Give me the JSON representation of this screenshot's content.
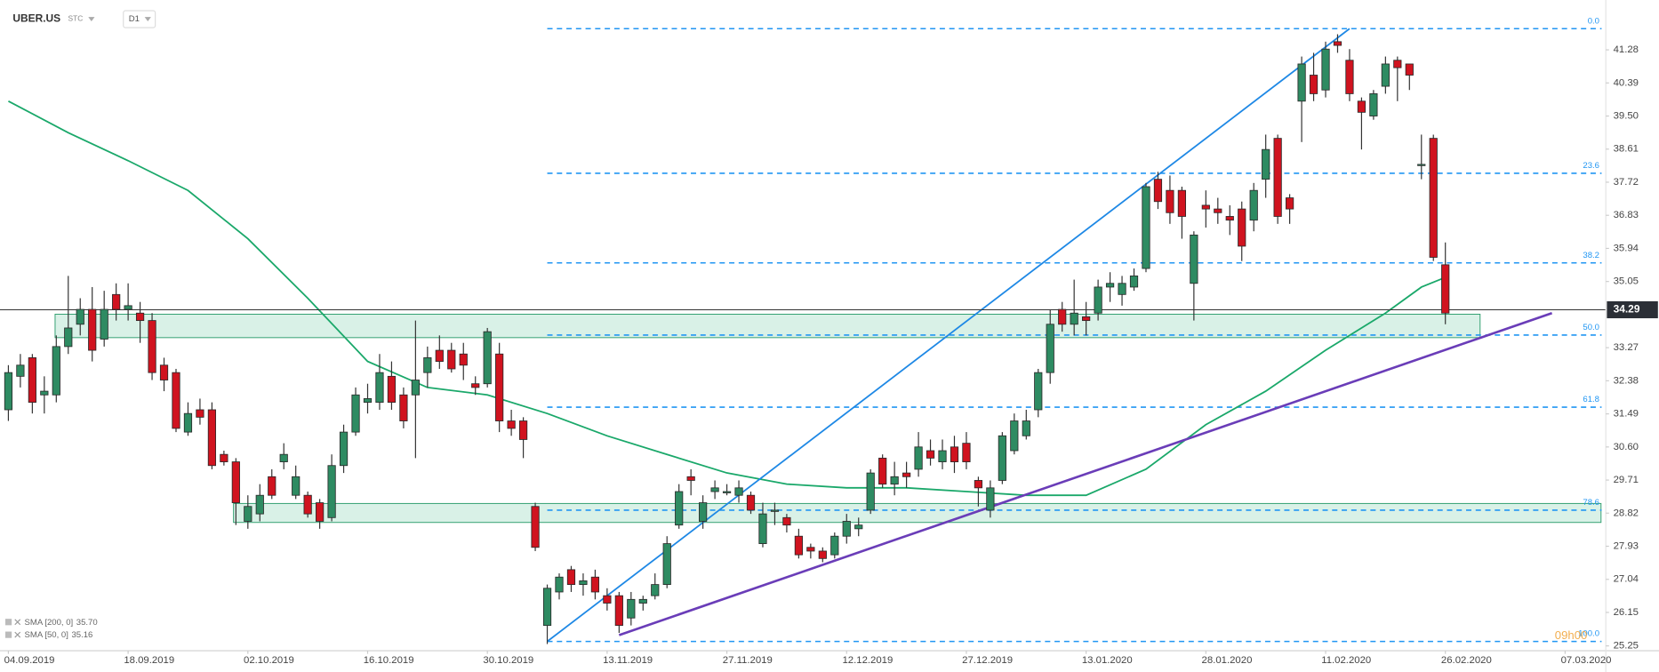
{
  "chart_data": {
    "type": "candlestick",
    "symbol": "UBER.US",
    "mode": "STC",
    "interval": "D1",
    "xlim": [
      -0.7,
      133.4
    ],
    "ylim": [
      25.12,
      42.62
    ],
    "yticks": [
      41.28,
      40.39,
      {
        "value": 39.5,
        "label": "39.50"
      },
      38.61,
      37.72,
      36.83,
      35.94,
      35.05,
      33.27,
      32.38,
      31.49,
      {
        "value": 30.6,
        "label": "30.60"
      },
      29.71,
      28.82,
      27.93,
      27.04,
      26.15,
      25.25
    ],
    "xticks": [
      {
        "value": 0,
        "label": "04.09.2019"
      },
      {
        "value": 10,
        "label": "18.09.2019"
      },
      {
        "value": 20,
        "label": "02.10.2019"
      },
      {
        "value": 30,
        "label": "16.10.2019"
      },
      {
        "value": 40,
        "label": "30.10.2019"
      },
      {
        "value": 50,
        "label": "13.11.2019"
      },
      {
        "value": 60,
        "label": "27.11.2019"
      },
      {
        "value": 70,
        "label": "12.12.2019"
      },
      {
        "value": 80,
        "label": "27.12.2019"
      },
      {
        "value": 90,
        "label": "13.01.2020"
      },
      {
        "value": 100,
        "label": "28.01.2020"
      },
      {
        "value": 110,
        "label": "11.02.2020"
      },
      {
        "value": 120,
        "label": "26.02.2020"
      },
      {
        "value": 130,
        "label": "07.03.2020"
      }
    ],
    "up_color": "#2e8b62",
    "down_color": "#d0131f",
    "ohlc": [
      [
        31.6,
        32.8,
        31.3,
        32.6
      ],
      [
        32.5,
        33.1,
        32.2,
        32.8
      ],
      [
        33.0,
        33.1,
        31.5,
        31.8
      ],
      [
        32.0,
        32.5,
        31.5,
        32.1
      ],
      [
        32.0,
        33.6,
        31.8,
        33.3
      ],
      [
        33.3,
        35.2,
        33.1,
        33.8
      ],
      [
        33.9,
        34.6,
        33.6,
        34.3
      ],
      [
        34.3,
        34.9,
        32.9,
        33.2
      ],
      [
        33.5,
        34.8,
        33.3,
        34.3
      ],
      [
        34.7,
        35.0,
        34.0,
        34.3
      ],
      [
        34.3,
        35.0,
        34.0,
        34.4
      ],
      [
        34.2,
        34.5,
        33.4,
        34.0
      ],
      [
        34.0,
        34.2,
        32.4,
        32.6
      ],
      [
        32.8,
        33.0,
        32.1,
        32.4
      ],
      [
        32.6,
        32.7,
        31.0,
        31.1
      ],
      [
        31.0,
        31.8,
        30.9,
        31.5
      ],
      [
        31.6,
        31.9,
        31.2,
        31.4
      ],
      [
        31.6,
        31.8,
        30.0,
        30.1
      ],
      [
        30.4,
        30.5,
        30.1,
        30.2
      ],
      [
        30.2,
        30.3,
        28.5,
        29.1
      ],
      [
        28.6,
        29.3,
        28.4,
        29.0
      ],
      [
        28.8,
        29.6,
        28.6,
        29.3
      ],
      [
        29.8,
        30.0,
        29.2,
        29.3
      ],
      [
        30.2,
        30.7,
        30.0,
        30.4
      ],
      [
        29.3,
        30.1,
        29.2,
        29.8
      ],
      [
        29.3,
        29.4,
        28.7,
        28.8
      ],
      [
        29.1,
        29.2,
        28.4,
        28.6
      ],
      [
        28.7,
        30.4,
        28.6,
        30.1
      ],
      [
        30.1,
        31.2,
        29.9,
        31.0
      ],
      [
        31.0,
        32.2,
        30.9,
        32.0
      ],
      [
        31.8,
        32.3,
        31.5,
        31.9
      ],
      [
        31.8,
        33.1,
        31.6,
        32.6
      ],
      [
        32.5,
        32.9,
        31.6,
        31.8
      ],
      [
        32.0,
        32.2,
        31.1,
        31.3
      ],
      [
        32.0,
        34.0,
        30.3,
        32.4
      ],
      [
        32.6,
        33.3,
        32.2,
        33.0
      ],
      [
        33.2,
        33.6,
        32.7,
        32.9
      ],
      [
        33.2,
        33.4,
        32.6,
        32.7
      ],
      [
        33.1,
        33.4,
        32.4,
        32.8
      ],
      [
        32.3,
        32.5,
        32.0,
        32.2
      ],
      [
        32.3,
        33.8,
        32.2,
        33.7
      ],
      [
        33.1,
        33.4,
        31.0,
        31.3
      ],
      [
        31.3,
        31.6,
        30.9,
        31.1
      ],
      [
        31.3,
        31.4,
        30.3,
        30.8
      ],
      [
        29.0,
        29.1,
        27.8,
        27.9
      ],
      [
        25.8,
        26.9,
        25.3,
        26.8
      ],
      [
        26.7,
        27.2,
        26.5,
        27.1
      ],
      [
        27.3,
        27.4,
        26.7,
        26.9
      ],
      [
        26.9,
        27.2,
        26.6,
        27.0
      ],
      [
        27.1,
        27.3,
        26.5,
        26.7
      ],
      [
        26.6,
        26.8,
        26.2,
        26.4
      ],
      [
        26.6,
        26.7,
        25.6,
        25.8
      ],
      [
        26.0,
        26.7,
        25.8,
        26.5
      ],
      [
        26.4,
        26.6,
        26.2,
        26.5
      ],
      [
        26.6,
        27.2,
        26.5,
        26.9
      ],
      [
        26.9,
        28.2,
        26.8,
        28.0
      ],
      [
        28.5,
        29.6,
        28.4,
        29.4
      ],
      [
        29.8,
        30.0,
        29.3,
        29.7
      ],
      [
        28.6,
        29.3,
        28.4,
        29.1
      ],
      [
        29.4,
        29.7,
        29.2,
        29.5
      ],
      [
        29.4,
        29.6,
        29.3,
        29.4
      ],
      [
        29.3,
        29.7,
        29.1,
        29.5
      ],
      [
        29.3,
        29.4,
        28.8,
        28.9
      ],
      [
        28.0,
        29.1,
        27.9,
        28.8
      ],
      [
        28.9,
        29.1,
        28.5,
        28.9
      ],
      [
        28.7,
        28.8,
        28.3,
        28.5
      ],
      [
        28.2,
        28.4,
        27.6,
        27.7
      ],
      [
        27.9,
        28.0,
        27.6,
        27.8
      ],
      [
        27.8,
        27.9,
        27.5,
        27.6
      ],
      [
        27.7,
        28.3,
        27.6,
        28.2
      ],
      [
        28.2,
        28.8,
        28.0,
        28.6
      ],
      [
        28.4,
        28.7,
        28.2,
        28.5
      ],
      [
        28.9,
        30.0,
        28.8,
        29.9
      ],
      [
        30.3,
        30.4,
        29.5,
        29.6
      ],
      [
        29.6,
        30.2,
        29.3,
        29.8
      ],
      [
        29.9,
        30.2,
        29.5,
        29.8
      ],
      [
        30.0,
        31.0,
        29.8,
        30.6
      ],
      [
        30.5,
        30.8,
        30.1,
        30.3
      ],
      [
        30.2,
        30.8,
        30.0,
        30.5
      ],
      [
        30.6,
        30.9,
        29.9,
        30.2
      ],
      [
        30.7,
        31.0,
        30.0,
        30.2
      ],
      [
        29.7,
        29.8,
        29.0,
        29.5
      ],
      [
        28.9,
        29.7,
        28.7,
        29.5
      ],
      [
        29.7,
        31.0,
        29.6,
        30.9
      ],
      [
        30.5,
        31.5,
        30.4,
        31.3
      ],
      [
        30.9,
        31.6,
        30.8,
        31.3
      ],
      [
        31.6,
        32.7,
        31.4,
        32.6
      ],
      [
        32.6,
        34.3,
        32.3,
        33.9
      ],
      [
        34.3,
        34.5,
        33.7,
        33.9
      ],
      [
        33.9,
        35.1,
        33.6,
        34.2
      ],
      [
        34.1,
        34.5,
        33.6,
        34.0
      ],
      [
        34.2,
        35.1,
        34.0,
        34.9
      ],
      [
        34.9,
        35.3,
        34.5,
        35.0
      ],
      [
        34.7,
        35.2,
        34.4,
        35.0
      ],
      [
        34.9,
        35.4,
        34.8,
        35.2
      ],
      [
        35.4,
        37.7,
        35.3,
        37.6
      ],
      [
        37.8,
        38.0,
        37.0,
        37.2
      ],
      [
        37.5,
        37.9,
        36.6,
        36.9
      ],
      [
        37.5,
        37.6,
        36.2,
        36.8
      ],
      [
        35.0,
        36.4,
        34.0,
        36.3
      ],
      [
        37.1,
        37.5,
        36.5,
        37.0
      ],
      [
        37.0,
        37.3,
        36.6,
        36.9
      ],
      [
        36.8,
        37.1,
        36.3,
        36.7
      ],
      [
        37.0,
        37.2,
        35.6,
        36.0
      ],
      [
        36.7,
        37.7,
        36.4,
        37.5
      ],
      [
        37.8,
        39.0,
        37.3,
        38.6
      ],
      [
        38.9,
        39.0,
        36.6,
        36.8
      ],
      [
        37.3,
        37.4,
        36.6,
        37.0
      ],
      [
        39.9,
        41.1,
        38.8,
        40.9
      ],
      [
        40.6,
        41.2,
        39.9,
        40.1
      ],
      [
        40.2,
        41.5,
        40.0,
        41.3
      ],
      [
        41.5,
        41.7,
        41.2,
        41.4
      ],
      [
        41.0,
        41.3,
        39.9,
        40.1
      ],
      [
        39.9,
        40.0,
        38.6,
        39.6
      ],
      [
        39.5,
        40.2,
        39.4,
        40.1
      ],
      [
        40.3,
        41.1,
        40.1,
        40.9
      ],
      [
        41.0,
        41.1,
        39.9,
        40.8
      ],
      [
        40.9,
        40.9,
        40.2,
        40.6
      ],
      [
        38.2,
        39.0,
        37.8,
        38.2
      ],
      [
        38.9,
        39.0,
        35.6,
        35.7
      ],
      [
        35.5,
        36.1,
        33.9,
        34.2
      ]
    ],
    "last_price": 34.29,
    "indicators": [
      {
        "name": "SMA [200, 0]",
        "last": 35.7,
        "last_label": "35.70"
      },
      {
        "name": "SMA [50, 0]",
        "last": 35.16,
        "last_label": "35.16",
        "color": "#1aa86a",
        "x": [
          0,
          5,
          10,
          15,
          20,
          25,
          30,
          35,
          40,
          45,
          50,
          55,
          60,
          65,
          70,
          75,
          80,
          85,
          90,
          95,
          100,
          105,
          110,
          115,
          118,
          120
        ],
        "values": [
          39.9,
          39.05,
          38.3,
          37.5,
          36.2,
          34.6,
          32.9,
          32.2,
          32.0,
          31.5,
          30.9,
          30.4,
          29.9,
          29.6,
          29.5,
          29.5,
          29.4,
          29.3,
          29.3,
          30.0,
          31.2,
          32.1,
          33.2,
          34.2,
          34.9,
          35.16
        ]
      }
    ],
    "fibonacci": {
      "color": "#2196f3",
      "levels": [
        {
          "label": "0.0",
          "price": 41.85
        },
        {
          "label": "23.6",
          "price": 37.96
        },
        {
          "label": "38.2",
          "price": 35.55
        },
        {
          "label": "50.0",
          "price": 33.61
        },
        {
          "label": "61.8",
          "price": 31.67
        },
        {
          "label": "78.6",
          "price": 28.9
        },
        {
          "label": "100.0",
          "price": 25.37
        }
      ]
    },
    "zones": [
      {
        "from": 3.9,
        "to": 122.9,
        "top": 34.17,
        "bottom": 33.54
      },
      {
        "from": 18.8,
        "to": 133.0,
        "top": 29.08,
        "bottom": 28.57
      }
    ],
    "trendlines": [
      {
        "color": "#1e88e5",
        "x": [
          45,
          112
        ],
        "values": [
          25.37,
          41.85
        ]
      },
      {
        "color": "#6a3db8",
        "x": [
          51,
          128.9
        ],
        "values": [
          25.54,
          34.2
        ]
      }
    ],
    "watermark": "09h00"
  }
}
